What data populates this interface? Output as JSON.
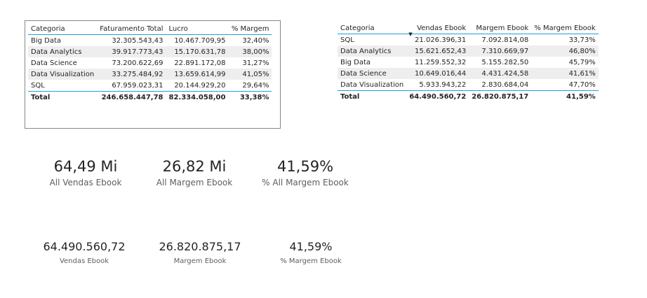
{
  "table1": {
    "headers": [
      "Categoria",
      "Faturamento Total",
      "Lucro",
      "% Margem"
    ],
    "rows": [
      [
        "Big Data",
        "32.305.543,43",
        "10.467.709,95",
        "32,40%"
      ],
      [
        "Data Analytics",
        "39.917.773,43",
        "15.170.631,78",
        "38,00%"
      ],
      [
        "Data Science",
        "73.200.622,69",
        "22.891.172,08",
        "31,27%"
      ],
      [
        "Data Visualization",
        "33.275.484,92",
        "13.659.614,99",
        "41,05%"
      ],
      [
        "SQL",
        "67.959.023,31",
        "20.144.929,20",
        "29,64%"
      ]
    ],
    "total": [
      "Total",
      "246.658.447,78",
      "82.334.058,00",
      "33,38%"
    ]
  },
  "table2": {
    "headers": [
      "Categoria",
      "Vendas Ebook",
      "Margem Ebook",
      "% Margem Ebook"
    ],
    "sort_column": "Vendas Ebook",
    "rows": [
      [
        "SQL",
        "21.026.396,31",
        "7.092.814,08",
        "33,73%"
      ],
      [
        "Data Analytics",
        "15.621.652,43",
        "7.310.669,97",
        "46,80%"
      ],
      [
        "Big Data",
        "11.259.552,32",
        "5.155.282,50",
        "45,79%"
      ],
      [
        "Data Science",
        "10.649.016,44",
        "4.431.424,58",
        "41,61%"
      ],
      [
        "Data Visualization",
        "5.933.943,22",
        "2.830.684,04",
        "47,70%"
      ]
    ],
    "total": [
      "Total",
      "64.490.560,72",
      "26.820.875,17",
      "41,59%"
    ]
  },
  "cards_row1": [
    {
      "value": "64,49 Mi",
      "label": "All Vendas Ebook"
    },
    {
      "value": "26,82 Mi",
      "label": "All Margem Ebook"
    },
    {
      "value": "41,59%",
      "label": "% All Margem Ebook"
    }
  ],
  "cards_row2": [
    {
      "value": "64.490.560,72",
      "label": "Vendas Ebook"
    },
    {
      "value": "26.820.875,17",
      "label": "Margem Ebook"
    },
    {
      "value": "41,59%",
      "label": "% Margem Ebook"
    }
  ],
  "colors": {
    "accent_line": "#1f9fd9",
    "row_band": "#eeeeee",
    "border": "#8a8886"
  }
}
